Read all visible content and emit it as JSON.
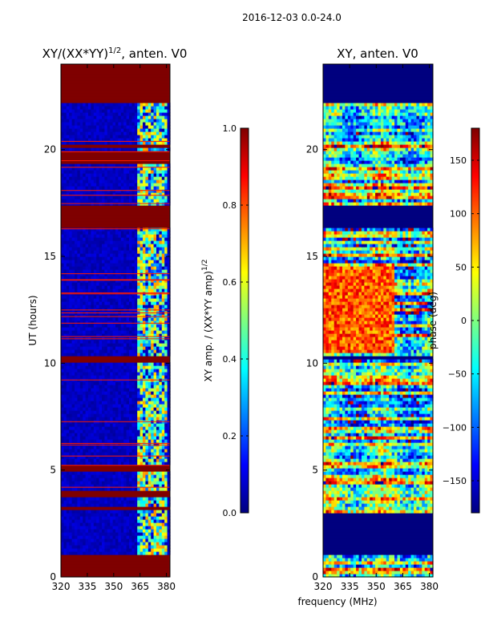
{
  "figure": {
    "suptitle": "2016-12-03 0.0-24.0",
    "shared_xlabel": "frequency (MHz)"
  },
  "colors": {
    "jet_stops": [
      "#00007f",
      "#0000ff",
      "#007fff",
      "#00ffff",
      "#7fff7f",
      "#ffff00",
      "#ff7f00",
      "#ff0000",
      "#7f0000"
    ],
    "frame": "#000000",
    "background": "#ffffff"
  },
  "chart_data": [
    {
      "type": "heatmap",
      "title_prefix": "XY/(XX*YY)",
      "title_sup": "1/2",
      "title_suffix": ", anten. V0",
      "xlabel": "",
      "ylabel": "UT (hours)",
      "xlim": [
        320,
        382
      ],
      "ylim": [
        0,
        24
      ],
      "xticks": [
        320,
        335,
        350,
        365,
        380
      ],
      "yticks": [
        0,
        5,
        10,
        15,
        20
      ],
      "colorbar": {
        "label_prefix": "XY amp. / (XX*YY amp)",
        "label_sup": "1/2",
        "ticks": [
          0.0,
          0.2,
          0.4,
          0.6,
          0.8,
          1.0
        ],
        "tick_labels": [
          "0.0",
          "0.2",
          "0.4",
          "0.6",
          "0.8",
          "1.0"
        ],
        "range": [
          0,
          1
        ]
      },
      "flagged_value": 1.0,
      "flagged_hours": [
        [
          0.0,
          1.0
        ],
        [
          3.1,
          3.3
        ],
        [
          3.8,
          4.1
        ],
        [
          5.0,
          5.3
        ],
        [
          10.1,
          10.4
        ],
        [
          16.3,
          17.4
        ],
        [
          19.4,
          19.9
        ],
        [
          20.1,
          20.3
        ],
        [
          22.2,
          24.0
        ]
      ],
      "structure": "near-zero amplitude (0-0.1) across the band, with bright 0.2-0.8 features concentrated between about 363 and 380 MHz"
    },
    {
      "type": "heatmap",
      "title": "XY, anten. V0",
      "xlabel": "frequency (MHz)",
      "ylabel": "",
      "xlim": [
        320,
        382
      ],
      "ylim": [
        0,
        24
      ],
      "xticks": [
        320,
        335,
        350,
        365,
        380
      ],
      "yticks": [
        0,
        5,
        10,
        15,
        20
      ],
      "colorbar": {
        "label": "phase (deg)",
        "ticks": [
          -150,
          -100,
          -50,
          0,
          50,
          100,
          150
        ],
        "tick_labels": [
          "−150",
          "−100",
          "−50",
          "0",
          "50",
          "100",
          "150"
        ],
        "range": [
          -180,
          180
        ]
      },
      "flagged_value": -180,
      "flagged_hours": [
        [
          1.0,
          3.0
        ],
        [
          10.2,
          10.3
        ],
        [
          16.3,
          17.4
        ],
        [
          22.2,
          24.0
        ]
      ],
      "structure": "noisy phase values spanning -180 to 180 degrees; warm 50-150 degree band between 10.5 and 14.5 hours"
    }
  ]
}
